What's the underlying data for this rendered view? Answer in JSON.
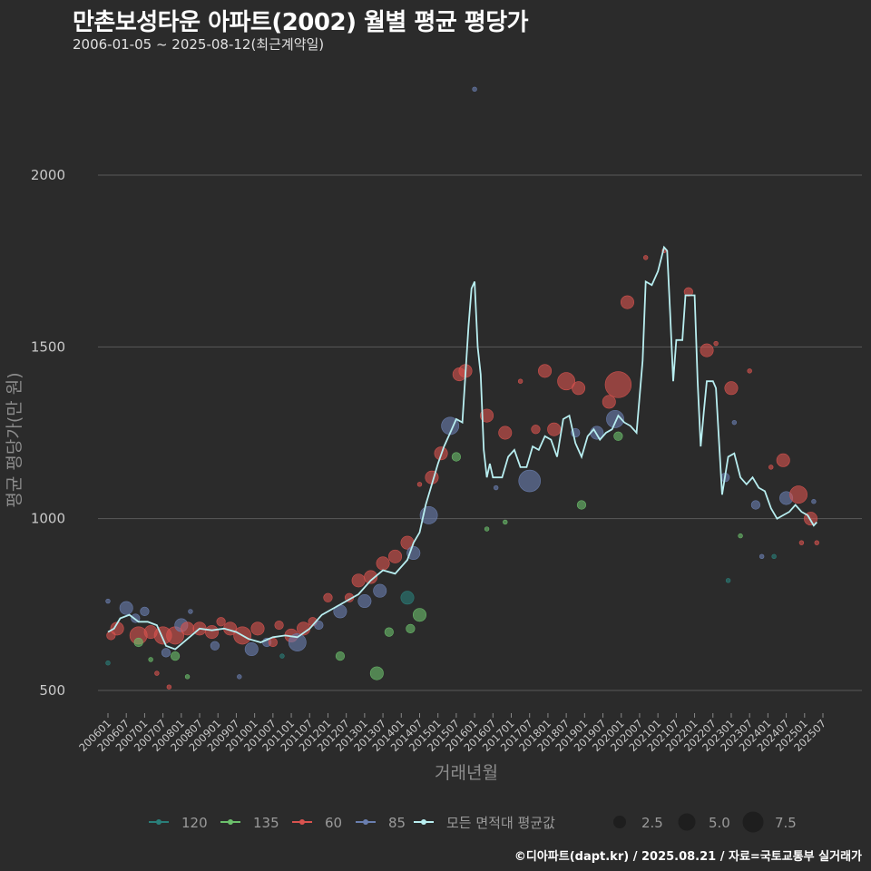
{
  "title": "만촌보성타운 아파트(2002) 월별 평균 평당가",
  "subtitle": "2006-01-05 ~ 2025-08-12(최근계약일)",
  "credit": "©디아파트(dapt.kr) / 2025.08.21 / 자료=국토교통부 실거래가",
  "colors": {
    "background": "#2b2b2b",
    "grid": "#5a5a5a",
    "s120": "#2a7f7a",
    "s135": "#6cc06c",
    "s60": "#d9534f",
    "s85": "#6a7fb0",
    "avg": "#b8eef0"
  },
  "chart_data": {
    "type": "line",
    "title": "만촌보성타운 아파트(2002) 월별 평균 평당가",
    "xlabel": "거래년월",
    "ylabel": "평균 평당가(만 원)",
    "ylim": [
      440,
      2280
    ],
    "yticks": [
      500,
      1000,
      1500,
      2000
    ],
    "x_start": "2006-01",
    "x_end": "2025-08",
    "xtick_labels": [
      "200601",
      "200607",
      "200701",
      "200707",
      "200801",
      "200807",
      "200901",
      "200907",
      "201001",
      "201007",
      "201101",
      "201107",
      "201201",
      "201207",
      "201301",
      "201307",
      "201401",
      "201407",
      "201501",
      "201507",
      "201601",
      "201607",
      "201701",
      "201707",
      "201801",
      "201807",
      "201901",
      "201907",
      "202001",
      "202007",
      "202101",
      "202107",
      "202201",
      "202207",
      "202301",
      "202307",
      "202401",
      "202407",
      "202501",
      "202507"
    ],
    "avg_series_name": "모든 면적대 평균값",
    "avg_anchor_points": [
      {
        "m": 0,
        "v": 670
      },
      {
        "m": 2,
        "v": 680
      },
      {
        "m": 4,
        "v": 710
      },
      {
        "m": 7,
        "v": 720
      },
      {
        "m": 10,
        "v": 700
      },
      {
        "m": 13,
        "v": 700
      },
      {
        "m": 16,
        "v": 690
      },
      {
        "m": 19,
        "v": 630
      },
      {
        "m": 22,
        "v": 620
      },
      {
        "m": 26,
        "v": 650
      },
      {
        "m": 30,
        "v": 680
      },
      {
        "m": 34,
        "v": 675
      },
      {
        "m": 38,
        "v": 680
      },
      {
        "m": 42,
        "v": 670
      },
      {
        "m": 46,
        "v": 650
      },
      {
        "m": 50,
        "v": 640
      },
      {
        "m": 54,
        "v": 655
      },
      {
        "m": 58,
        "v": 660
      },
      {
        "m": 62,
        "v": 655
      },
      {
        "m": 66,
        "v": 680
      },
      {
        "m": 70,
        "v": 720
      },
      {
        "m": 74,
        "v": 740
      },
      {
        "m": 78,
        "v": 760
      },
      {
        "m": 82,
        "v": 780
      },
      {
        "m": 86,
        "v": 820
      },
      {
        "m": 90,
        "v": 850
      },
      {
        "m": 94,
        "v": 840
      },
      {
        "m": 98,
        "v": 880
      },
      {
        "m": 100,
        "v": 930
      },
      {
        "m": 102,
        "v": 960
      },
      {
        "m": 104,
        "v": 1040
      },
      {
        "m": 106,
        "v": 1100
      },
      {
        "m": 108,
        "v": 1160
      },
      {
        "m": 110,
        "v": 1210
      },
      {
        "m": 112,
        "v": 1250
      },
      {
        "m": 114,
        "v": 1290
      },
      {
        "m": 116,
        "v": 1280
      },
      {
        "m": 118,
        "v": 1560
      },
      {
        "m": 119,
        "v": 1670
      },
      {
        "m": 120,
        "v": 1690
      },
      {
        "m": 121,
        "v": 1500
      },
      {
        "m": 122,
        "v": 1420
      },
      {
        "m": 123,
        "v": 1200
      },
      {
        "m": 124,
        "v": 1120
      },
      {
        "m": 125,
        "v": 1160
      },
      {
        "m": 126,
        "v": 1120
      },
      {
        "m": 129,
        "v": 1120
      },
      {
        "m": 131,
        "v": 1180
      },
      {
        "m": 133,
        "v": 1200
      },
      {
        "m": 135,
        "v": 1150
      },
      {
        "m": 137,
        "v": 1150
      },
      {
        "m": 139,
        "v": 1210
      },
      {
        "m": 141,
        "v": 1200
      },
      {
        "m": 143,
        "v": 1240
      },
      {
        "m": 145,
        "v": 1230
      },
      {
        "m": 147,
        "v": 1180
      },
      {
        "m": 149,
        "v": 1290
      },
      {
        "m": 151,
        "v": 1300
      },
      {
        "m": 153,
        "v": 1220
      },
      {
        "m": 155,
        "v": 1180
      },
      {
        "m": 157,
        "v": 1240
      },
      {
        "m": 159,
        "v": 1260
      },
      {
        "m": 161,
        "v": 1230
      },
      {
        "m": 163,
        "v": 1250
      },
      {
        "m": 165,
        "v": 1260
      },
      {
        "m": 167,
        "v": 1300
      },
      {
        "m": 169,
        "v": 1280
      },
      {
        "m": 171,
        "v": 1270
      },
      {
        "m": 173,
        "v": 1250
      },
      {
        "m": 175,
        "v": 1460
      },
      {
        "m": 176,
        "v": 1690
      },
      {
        "m": 178,
        "v": 1680
      },
      {
        "m": 180,
        "v": 1720
      },
      {
        "m": 182,
        "v": 1790
      },
      {
        "m": 183,
        "v": 1780
      },
      {
        "m": 184,
        "v": 1600
      },
      {
        "m": 185,
        "v": 1400
      },
      {
        "m": 186,
        "v": 1520
      },
      {
        "m": 188,
        "v": 1520
      },
      {
        "m": 189,
        "v": 1650
      },
      {
        "m": 192,
        "v": 1650
      },
      {
        "m": 193,
        "v": 1400
      },
      {
        "m": 194,
        "v": 1210
      },
      {
        "m": 195,
        "v": 1310
      },
      {
        "m": 196,
        "v": 1400
      },
      {
        "m": 198,
        "v": 1400
      },
      {
        "m": 199,
        "v": 1380
      },
      {
        "m": 201,
        "v": 1070
      },
      {
        "m": 203,
        "v": 1180
      },
      {
        "m": 205,
        "v": 1190
      },
      {
        "m": 207,
        "v": 1120
      },
      {
        "m": 209,
        "v": 1100
      },
      {
        "m": 211,
        "v": 1120
      },
      {
        "m": 213,
        "v": 1090
      },
      {
        "m": 215,
        "v": 1080
      },
      {
        "m": 217,
        "v": 1030
      },
      {
        "m": 219,
        "v": 1000
      },
      {
        "m": 221,
        "v": 1010
      },
      {
        "m": 223,
        "v": 1020
      },
      {
        "m": 225,
        "v": 1040
      },
      {
        "m": 227,
        "v": 1020
      },
      {
        "m": 229,
        "v": 1010
      },
      {
        "m": 231,
        "v": 980
      },
      {
        "m": 232,
        "v": 990
      }
    ],
    "series_names": [
      "120",
      "135",
      "60",
      "85"
    ],
    "size_legend": [
      "2.5",
      "5.0",
      "7.5"
    ],
    "scatter_samples": [
      {
        "s": "85",
        "m": 0,
        "v": 760,
        "n": 1
      },
      {
        "s": "120",
        "m": 0,
        "v": 580,
        "n": 1
      },
      {
        "s": "60",
        "m": 1,
        "v": 660,
        "n": 2
      },
      {
        "s": "60",
        "m": 3,
        "v": 680,
        "n": 3
      },
      {
        "s": "85",
        "m": 6,
        "v": 740,
        "n": 3
      },
      {
        "s": "85",
        "m": 9,
        "v": 710,
        "n": 2
      },
      {
        "s": "60",
        "m": 10,
        "v": 660,
        "n": 4
      },
      {
        "s": "135",
        "m": 10,
        "v": 640,
        "n": 2
      },
      {
        "s": "85",
        "m": 12,
        "v": 730,
        "n": 2
      },
      {
        "s": "60",
        "m": 14,
        "v": 670,
        "n": 3
      },
      {
        "s": "135",
        "m": 14,
        "v": 590,
        "n": 1
      },
      {
        "s": "60",
        "m": 16,
        "v": 550,
        "n": 1
      },
      {
        "s": "60",
        "m": 18,
        "v": 660,
        "n": 4
      },
      {
        "s": "85",
        "m": 19,
        "v": 610,
        "n": 2
      },
      {
        "s": "60",
        "m": 20,
        "v": 510,
        "n": 1
      },
      {
        "s": "135",
        "m": 22,
        "v": 600,
        "n": 2
      },
      {
        "s": "60",
        "m": 22,
        "v": 660,
        "n": 4
      },
      {
        "s": "85",
        "m": 24,
        "v": 690,
        "n": 3
      },
      {
        "s": "60",
        "m": 26,
        "v": 680,
        "n": 3
      },
      {
        "s": "85",
        "m": 27,
        "v": 730,
        "n": 1
      },
      {
        "s": "135",
        "m": 26,
        "v": 540,
        "n": 1
      },
      {
        "s": "60",
        "m": 30,
        "v": 680,
        "n": 3
      },
      {
        "s": "60",
        "m": 34,
        "v": 670,
        "n": 3
      },
      {
        "s": "85",
        "m": 35,
        "v": 630,
        "n": 2
      },
      {
        "s": "60",
        "m": 37,
        "v": 700,
        "n": 2
      },
      {
        "s": "60",
        "m": 40,
        "v": 680,
        "n": 3
      },
      {
        "s": "85",
        "m": 43,
        "v": 540,
        "n": 1
      },
      {
        "s": "60",
        "m": 44,
        "v": 660,
        "n": 4
      },
      {
        "s": "85",
        "m": 47,
        "v": 620,
        "n": 3
      },
      {
        "s": "60",
        "m": 49,
        "v": 680,
        "n": 3
      },
      {
        "s": "85",
        "m": 52,
        "v": 640,
        "n": 2
      },
      {
        "s": "60",
        "m": 54,
        "v": 640,
        "n": 2
      },
      {
        "s": "60",
        "m": 56,
        "v": 690,
        "n": 2
      },
      {
        "s": "120",
        "m": 57,
        "v": 600,
        "n": 1
      },
      {
        "s": "60",
        "m": 60,
        "v": 660,
        "n": 3
      },
      {
        "s": "85",
        "m": 62,
        "v": 640,
        "n": 4
      },
      {
        "s": "60",
        "m": 64,
        "v": 680,
        "n": 3
      },
      {
        "s": "60",
        "m": 67,
        "v": 700,
        "n": 2
      },
      {
        "s": "85",
        "m": 69,
        "v": 690,
        "n": 2
      },
      {
        "s": "60",
        "m": 72,
        "v": 770,
        "n": 2
      },
      {
        "s": "85",
        "m": 76,
        "v": 730,
        "n": 3
      },
      {
        "s": "135",
        "m": 76,
        "v": 600,
        "n": 2
      },
      {
        "s": "60",
        "m": 79,
        "v": 770,
        "n": 2
      },
      {
        "s": "60",
        "m": 82,
        "v": 820,
        "n": 3
      },
      {
        "s": "85",
        "m": 84,
        "v": 760,
        "n": 3
      },
      {
        "s": "60",
        "m": 86,
        "v": 830,
        "n": 3
      },
      {
        "s": "135",
        "m": 88,
        "v": 550,
        "n": 3
      },
      {
        "s": "85",
        "m": 89,
        "v": 790,
        "n": 3
      },
      {
        "s": "60",
        "m": 90,
        "v": 870,
        "n": 3
      },
      {
        "s": "135",
        "m": 92,
        "v": 670,
        "n": 2
      },
      {
        "s": "60",
        "m": 94,
        "v": 890,
        "n": 3
      },
      {
        "s": "60",
        "m": 98,
        "v": 930,
        "n": 3
      },
      {
        "s": "120",
        "m": 98,
        "v": 770,
        "n": 3
      },
      {
        "s": "135",
        "m": 99,
        "v": 680,
        "n": 2
      },
      {
        "s": "85",
        "m": 100,
        "v": 900,
        "n": 3
      },
      {
        "s": "135",
        "m": 102,
        "v": 720,
        "n": 3
      },
      {
        "s": "60",
        "m": 102,
        "v": 1100,
        "n": 1
      },
      {
        "s": "85",
        "m": 105,
        "v": 1010,
        "n": 4
      },
      {
        "s": "60",
        "m": 106,
        "v": 1120,
        "n": 3
      },
      {
        "s": "60",
        "m": 109,
        "v": 1190,
        "n": 3
      },
      {
        "s": "85",
        "m": 112,
        "v": 1270,
        "n": 4
      },
      {
        "s": "135",
        "m": 114,
        "v": 1180,
        "n": 2
      },
      {
        "s": "60",
        "m": 115,
        "v": 1420,
        "n": 3
      },
      {
        "s": "60",
        "m": 117,
        "v": 1430,
        "n": 3
      },
      {
        "s": "85",
        "m": 120,
        "v": 2250,
        "n": 1
      },
      {
        "s": "60",
        "m": 124,
        "v": 1300,
        "n": 3
      },
      {
        "s": "135",
        "m": 124,
        "v": 970,
        "n": 1
      },
      {
        "s": "85",
        "m": 127,
        "v": 1090,
        "n": 1
      },
      {
        "s": "60",
        "m": 130,
        "v": 1250,
        "n": 3
      },
      {
        "s": "135",
        "m": 130,
        "v": 990,
        "n": 1
      },
      {
        "s": "60",
        "m": 135,
        "v": 1400,
        "n": 1
      },
      {
        "s": "85",
        "m": 138,
        "v": 1110,
        "n": 5
      },
      {
        "s": "60",
        "m": 140,
        "v": 1260,
        "n": 2
      },
      {
        "s": "60",
        "m": 143,
        "v": 1430,
        "n": 3
      },
      {
        "s": "60",
        "m": 146,
        "v": 1260,
        "n": 3
      },
      {
        "s": "60",
        "m": 150,
        "v": 1400,
        "n": 4
      },
      {
        "s": "85",
        "m": 153,
        "v": 1250,
        "n": 2
      },
      {
        "s": "60",
        "m": 154,
        "v": 1380,
        "n": 3
      },
      {
        "s": "135",
        "m": 155,
        "v": 1040,
        "n": 2
      },
      {
        "s": "85",
        "m": 160,
        "v": 1250,
        "n": 3
      },
      {
        "s": "60",
        "m": 164,
        "v": 1340,
        "n": 3
      },
      {
        "s": "85",
        "m": 166,
        "v": 1290,
        "n": 4
      },
      {
        "s": "60",
        "m": 167,
        "v": 1390,
        "n": 6
      },
      {
        "s": "135",
        "m": 167,
        "v": 1240,
        "n": 2
      },
      {
        "s": "60",
        "m": 170,
        "v": 1630,
        "n": 3
      },
      {
        "s": "60",
        "m": 176,
        "v": 1760,
        "n": 1
      },
      {
        "s": "60",
        "m": 182,
        "v": 1780,
        "n": 1
      },
      {
        "s": "60",
        "m": 190,
        "v": 1660,
        "n": 2
      },
      {
        "s": "60",
        "m": 196,
        "v": 1490,
        "n": 3
      },
      {
        "s": "60",
        "m": 199,
        "v": 1510,
        "n": 1
      },
      {
        "s": "85",
        "m": 202,
        "v": 1120,
        "n": 2
      },
      {
        "s": "60",
        "m": 204,
        "v": 1380,
        "n": 3
      },
      {
        "s": "85",
        "m": 205,
        "v": 1280,
        "n": 1
      },
      {
        "s": "120",
        "m": 203,
        "v": 820,
        "n": 1
      },
      {
        "s": "135",
        "m": 207,
        "v": 950,
        "n": 1
      },
      {
        "s": "60",
        "m": 210,
        "v": 1430,
        "n": 1
      },
      {
        "s": "85",
        "m": 212,
        "v": 1040,
        "n": 2
      },
      {
        "s": "85",
        "m": 214,
        "v": 890,
        "n": 1
      },
      {
        "s": "60",
        "m": 217,
        "v": 1150,
        "n": 1
      },
      {
        "s": "120",
        "m": 218,
        "v": 890,
        "n": 1
      },
      {
        "s": "60",
        "m": 221,
        "v": 1170,
        "n": 3
      },
      {
        "s": "85",
        "m": 222,
        "v": 1060,
        "n": 3
      },
      {
        "s": "60",
        "m": 226,
        "v": 1070,
        "n": 4
      },
      {
        "s": "60",
        "m": 227,
        "v": 930,
        "n": 1
      },
      {
        "s": "60",
        "m": 230,
        "v": 1000,
        "n": 3
      },
      {
        "s": "60",
        "m": 232,
        "v": 930,
        "n": 1
      },
      {
        "s": "85",
        "m": 231,
        "v": 1050,
        "n": 1
      }
    ]
  }
}
